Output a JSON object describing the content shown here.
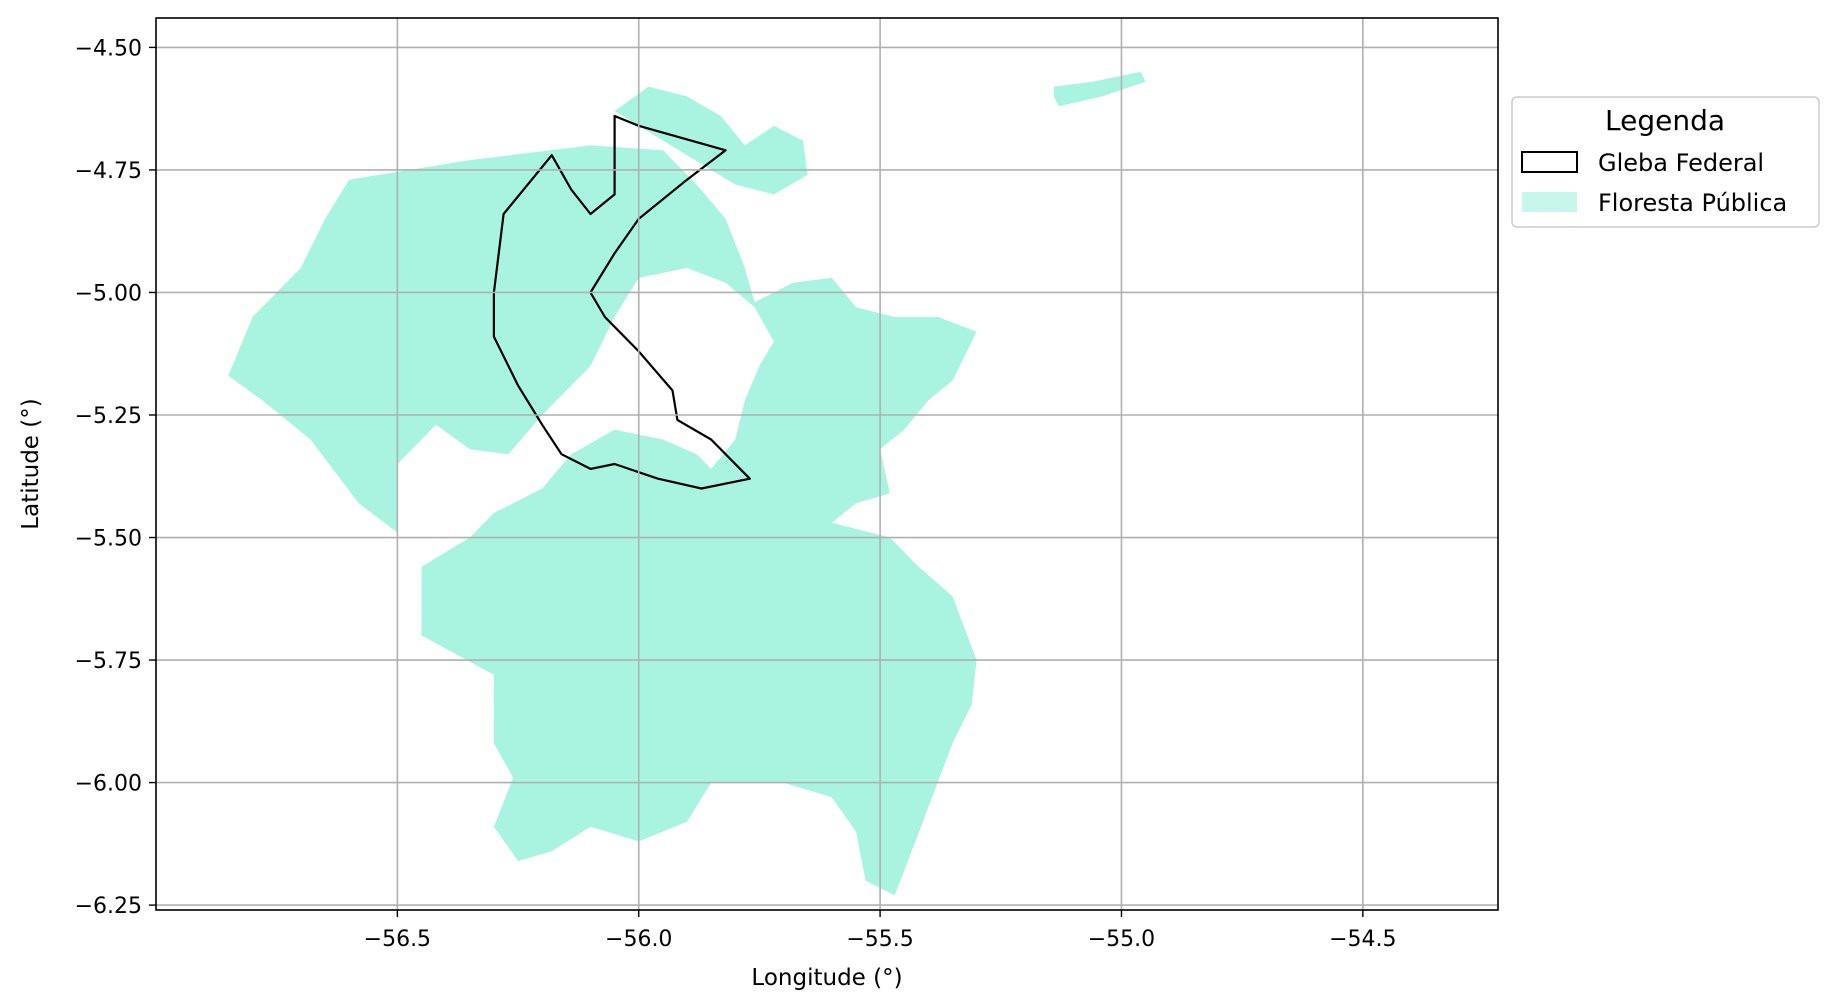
{
  "chart_data": {
    "type": "map",
    "xlabel": "Longitude (°)",
    "ylabel": "Latitude (°)",
    "xlim": [
      -57.0,
      -54.22
    ],
    "ylim": [
      -6.26,
      -4.44
    ],
    "x_ticks": [
      -56.5,
      -56.0,
      -55.5,
      -55.0,
      -54.5
    ],
    "x_tick_labels": [
      "−56.5",
      "−56.0",
      "−55.5",
      "−55.0",
      "−54.5"
    ],
    "y_ticks": [
      -4.5,
      -4.75,
      -5.0,
      -5.25,
      -5.5,
      -5.75,
      -6.0,
      -6.25
    ],
    "y_tick_labels": [
      "−4.50",
      "−4.75",
      "−5.00",
      "−5.25",
      "−5.50",
      "−5.75",
      "−6.00",
      "−6.25"
    ],
    "grid": true,
    "legend": {
      "title": "Legenda",
      "placement": "outside right",
      "entries": [
        {
          "label": "Gleba Federal",
          "style": "outline",
          "color": "#000000"
        },
        {
          "label": "Floresta Pública",
          "style": "fill",
          "color": "#a8f4e0"
        }
      ]
    },
    "layers": [
      {
        "name": "Floresta Pública",
        "color": "#a8f4e0",
        "polygons": [
          [
            [
              -56.05,
              -4.63
            ],
            [
              -55.98,
              -4.58
            ],
            [
              -55.9,
              -4.6
            ],
            [
              -55.83,
              -4.64
            ],
            [
              -55.78,
              -4.7
            ],
            [
              -55.72,
              -4.66
            ],
            [
              -55.66,
              -4.69
            ],
            [
              -55.65,
              -4.76
            ],
            [
              -55.72,
              -4.8
            ],
            [
              -55.8,
              -4.78
            ],
            [
              -55.9,
              -4.72
            ],
            [
              -56.0,
              -4.66
            ]
          ],
          [
            [
              -55.14,
              -4.58
            ],
            [
              -55.06,
              -4.57
            ],
            [
              -54.96,
              -4.55
            ],
            [
              -54.95,
              -4.57
            ],
            [
              -55.04,
              -4.6
            ],
            [
              -55.13,
              -4.62
            ],
            [
              -55.14,
              -4.6
            ]
          ],
          [
            [
              -56.6,
              -4.77
            ],
            [
              -56.35,
              -4.73
            ],
            [
              -56.1,
              -4.7
            ],
            [
              -55.95,
              -4.71
            ],
            [
              -55.88,
              -4.78
            ],
            [
              -55.82,
              -4.85
            ],
            [
              -55.78,
              -4.95
            ],
            [
              -55.76,
              -5.02
            ],
            [
              -55.68,
              -4.98
            ],
            [
              -55.6,
              -4.97
            ],
            [
              -55.55,
              -5.03
            ],
            [
              -55.47,
              -5.05
            ],
            [
              -55.38,
              -5.05
            ],
            [
              -55.3,
              -5.08
            ],
            [
              -55.35,
              -5.18
            ],
            [
              -55.4,
              -5.22
            ],
            [
              -55.45,
              -5.28
            ],
            [
              -55.5,
              -5.32
            ],
            [
              -55.48,
              -5.41
            ],
            [
              -55.55,
              -5.43
            ],
            [
              -55.6,
              -5.47
            ],
            [
              -55.48,
              -5.5
            ],
            [
              -55.42,
              -5.56
            ],
            [
              -55.35,
              -5.62
            ],
            [
              -55.3,
              -5.75
            ],
            [
              -55.31,
              -5.84
            ],
            [
              -55.35,
              -5.92
            ],
            [
              -55.4,
              -6.05
            ],
            [
              -55.45,
              -6.18
            ],
            [
              -55.47,
              -6.23
            ],
            [
              -55.53,
              -6.2
            ],
            [
              -55.55,
              -6.1
            ],
            [
              -55.6,
              -6.03
            ],
            [
              -55.7,
              -6.0
            ],
            [
              -55.85,
              -6.0
            ],
            [
              -55.9,
              -6.08
            ],
            [
              -56.0,
              -6.12
            ],
            [
              -56.1,
              -6.09
            ],
            [
              -56.18,
              -6.14
            ],
            [
              -56.25,
              -6.16
            ],
            [
              -56.3,
              -6.09
            ],
            [
              -56.26,
              -5.99
            ],
            [
              -56.3,
              -5.92
            ],
            [
              -56.3,
              -5.78
            ],
            [
              -56.45,
              -5.7
            ],
            [
              -56.45,
              -5.56
            ],
            [
              -56.35,
              -5.5
            ],
            [
              -56.3,
              -5.45
            ],
            [
              -56.2,
              -5.4
            ],
            [
              -56.14,
              -5.33
            ],
            [
              -56.05,
              -5.28
            ],
            [
              -55.95,
              -5.3
            ],
            [
              -55.88,
              -5.33
            ],
            [
              -55.85,
              -5.36
            ],
            [
              -55.8,
              -5.3
            ],
            [
              -55.78,
              -5.22
            ],
            [
              -55.75,
              -5.15
            ],
            [
              -55.72,
              -5.1
            ],
            [
              -55.76,
              -5.03
            ],
            [
              -55.82,
              -4.98
            ],
            [
              -55.9,
              -4.95
            ],
            [
              -56.0,
              -4.97
            ],
            [
              -56.05,
              -5.05
            ],
            [
              -56.1,
              -5.15
            ],
            [
              -56.2,
              -5.25
            ],
            [
              -56.27,
              -5.33
            ],
            [
              -56.35,
              -5.32
            ],
            [
              -56.42,
              -5.27
            ],
            [
              -56.5,
              -5.35
            ],
            [
              -56.5,
              -5.49
            ],
            [
              -56.58,
              -5.43
            ],
            [
              -56.68,
              -5.3
            ],
            [
              -56.78,
              -5.22
            ],
            [
              -56.85,
              -5.17
            ],
            [
              -56.8,
              -5.05
            ],
            [
              -56.7,
              -4.95
            ],
            [
              -56.65,
              -4.85
            ]
          ]
        ]
      },
      {
        "name": "Gleba Federal",
        "color": "#000000",
        "polygons": [
          [
            [
              -56.05,
              -4.64
            ],
            [
              -56.0,
              -4.66
            ],
            [
              -55.82,
              -4.71
            ],
            [
              -55.9,
              -4.77
            ],
            [
              -56.0,
              -4.85
            ],
            [
              -56.05,
              -4.92
            ],
            [
              -56.1,
              -5.0
            ],
            [
              -56.07,
              -5.05
            ],
            [
              -56.0,
              -5.12
            ],
            [
              -55.93,
              -5.2
            ],
            [
              -55.92,
              -5.26
            ],
            [
              -55.85,
              -5.3
            ],
            [
              -55.77,
              -5.38
            ],
            [
              -55.87,
              -5.4
            ],
            [
              -55.96,
              -5.38
            ],
            [
              -56.05,
              -5.35
            ],
            [
              -56.1,
              -5.36
            ],
            [
              -56.16,
              -5.33
            ],
            [
              -56.2,
              -5.27
            ],
            [
              -56.25,
              -5.19
            ],
            [
              -56.3,
              -5.09
            ],
            [
              -56.3,
              -5.0
            ],
            [
              -56.28,
              -4.84
            ],
            [
              -56.18,
              -4.72
            ],
            [
              -56.14,
              -4.79
            ],
            [
              -56.1,
              -4.84
            ],
            [
              -56.05,
              -4.8
            ],
            [
              -56.05,
              -4.7
            ]
          ]
        ]
      }
    ]
  }
}
